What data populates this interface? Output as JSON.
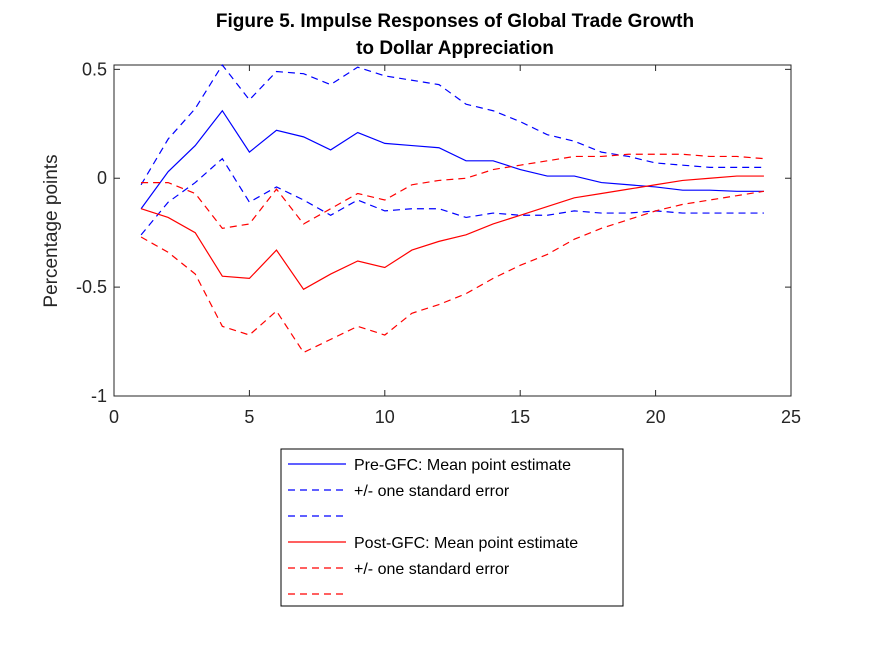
{
  "chart_data": {
    "type": "line",
    "title": "Figure 5. Impulse Responses of Global Trade Growth",
    "subtitle": "to Dollar Appreciation",
    "xlabel": "",
    "ylabel": "Percentage points",
    "xlim": [
      0,
      25
    ],
    "ylim": [
      -1,
      0.52
    ],
    "xticks": [
      0,
      5,
      10,
      15,
      20,
      25
    ],
    "xtick_labels": [
      "0",
      "5",
      "10",
      "15",
      "20",
      "25"
    ],
    "yticks": [
      0.5,
      0,
      -0.5,
      -1
    ],
    "ytick_labels": [
      "0.5",
      "0",
      "-0.5",
      "-1"
    ],
    "grid": false,
    "legend_position": "below",
    "x": [
      1,
      2,
      3,
      4,
      5,
      6,
      7,
      8,
      9,
      10,
      11,
      12,
      13,
      14,
      15,
      16,
      17,
      18,
      19,
      20,
      21,
      22,
      23,
      24
    ],
    "series": [
      {
        "name": "Pre-GFC: Mean point estimate",
        "color": "#0000ff",
        "dash": "solid",
        "values": [
          -0.14,
          0.03,
          0.15,
          0.31,
          0.12,
          0.22,
          0.19,
          0.13,
          0.21,
          0.16,
          0.15,
          0.14,
          0.08,
          0.08,
          0.04,
          0.01,
          0.01,
          -0.02,
          -0.03,
          -0.04,
          -0.055,
          -0.055,
          -0.06,
          -0.06
        ]
      },
      {
        "name": "+/- one standard error",
        "color": "#0000ff",
        "dash": "dashed",
        "values": [
          -0.03,
          0.18,
          0.32,
          0.52,
          0.36,
          0.49,
          0.48,
          0.43,
          0.51,
          0.47,
          0.45,
          0.43,
          0.34,
          0.31,
          0.26,
          0.2,
          0.17,
          0.12,
          0.1,
          0.07,
          0.06,
          0.05,
          0.05,
          0.05
        ]
      },
      {
        "name": "",
        "color": "#0000ff",
        "dash": "dashed",
        "values": [
          -0.26,
          -0.11,
          -0.02,
          0.09,
          -0.11,
          -0.04,
          -0.1,
          -0.17,
          -0.1,
          -0.15,
          -0.14,
          -0.14,
          -0.18,
          -0.16,
          -0.17,
          -0.17,
          -0.15,
          -0.16,
          -0.16,
          -0.15,
          -0.16,
          -0.16,
          -0.16,
          -0.16
        ]
      },
      {
        "name": "Post-GFC: Mean point estimate",
        "color": "#ff0000",
        "dash": "solid",
        "values": [
          -0.14,
          -0.18,
          -0.25,
          -0.45,
          -0.46,
          -0.33,
          -0.51,
          -0.44,
          -0.38,
          -0.41,
          -0.33,
          -0.29,
          -0.26,
          -0.21,
          -0.17,
          -0.13,
          -0.09,
          -0.07,
          -0.05,
          -0.03,
          -0.01,
          0.0,
          0.01,
          0.01
        ]
      },
      {
        "name": "+/- one standard error",
        "color": "#ff0000",
        "dash": "dashed",
        "values": [
          -0.02,
          -0.02,
          -0.07,
          -0.23,
          -0.21,
          -0.05,
          -0.21,
          -0.14,
          -0.07,
          -0.1,
          -0.03,
          -0.01,
          0.0,
          0.04,
          0.06,
          0.08,
          0.1,
          0.1,
          0.11,
          0.11,
          0.11,
          0.1,
          0.1,
          0.09
        ]
      },
      {
        "name": "",
        "color": "#ff0000",
        "dash": "dashed",
        "values": [
          -0.27,
          -0.34,
          -0.44,
          -0.68,
          -0.72,
          -0.61,
          -0.8,
          -0.74,
          -0.68,
          -0.72,
          -0.62,
          -0.58,
          -0.53,
          -0.46,
          -0.4,
          -0.35,
          -0.28,
          -0.23,
          -0.19,
          -0.15,
          -0.12,
          -0.1,
          -0.08,
          -0.06
        ]
      }
    ]
  }
}
